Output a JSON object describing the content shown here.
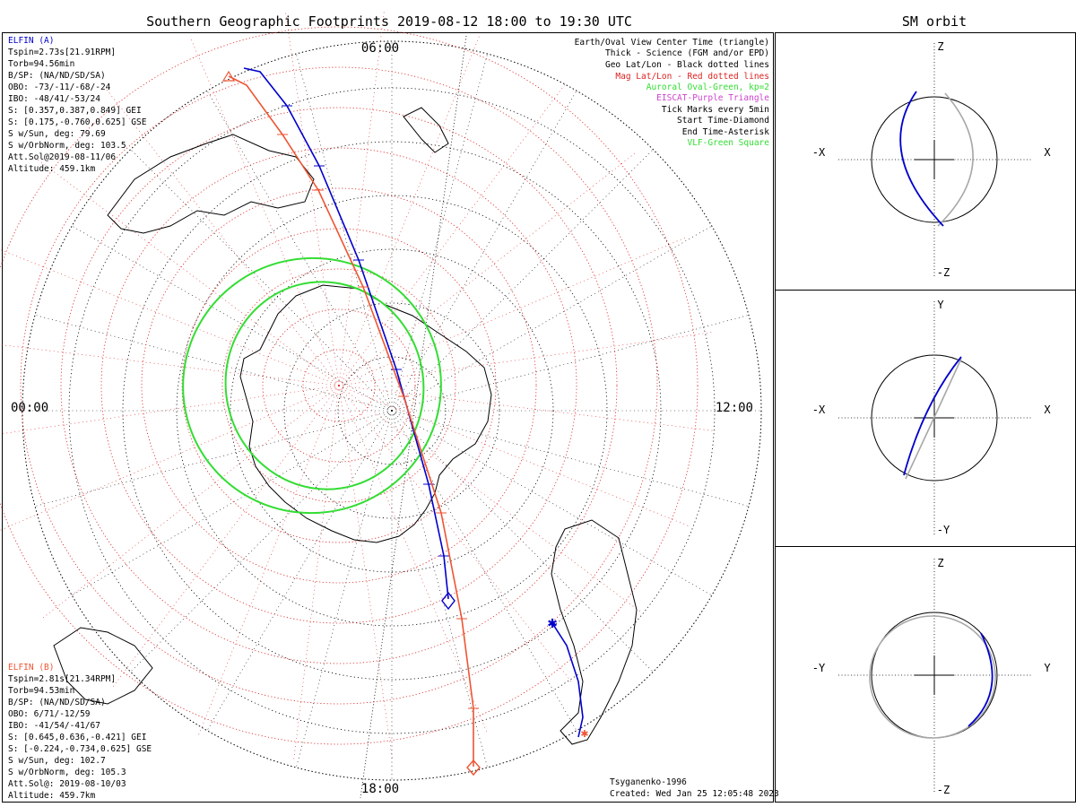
{
  "title": "Southern Geographic Footprints 2019-08-12 18:00 to 19:30 UTC",
  "side_title": "SM orbit",
  "hours": {
    "top": "06:00",
    "left": "00:00",
    "right": "12:00",
    "bottom": "18:00"
  },
  "colors": {
    "elfin_a": "#0000cc",
    "elfin_b": "#ee5533",
    "oval": "#33dd33",
    "mag_grid": "#dd2222",
    "geo_grid": "#000000",
    "sm_gray": "#a8a8a8",
    "eiscat": "#cc44cc"
  },
  "elfin_a": {
    "lines": [
      "ELFIN (A)",
      "Tspin=2.73s[21.91RPM]",
      "Torb=94.56min",
      "B/SP: (NA/ND/SD/SA)",
      "OBO: -73/-11/-68/-24",
      "IBO: -48/41/-53/24",
      "S: [0.357,0.387,0.849] GEI",
      "S: [0.175,-0.760,0.625] GSE",
      "S w/Sun, deg: 79.69",
      "S w/OrbNorm, deg: 103.5",
      "Att.Sol@2019-08-11/06",
      "Altitude: 459.1km"
    ]
  },
  "elfin_b": {
    "lines": [
      "ELFIN (B)",
      "Tspin=2.81s[21.34RPM]",
      "Torb=94.53min",
      "B/SP: (NA/ND/SD/SA)",
      "OBO: 6/71/-12/59",
      "IBO: -41/54/-41/67",
      "S: [0.645,0.636,-0.421] GEI",
      "S: [-0.224,-0.734,0.625] GSE",
      "S w/Sun, deg: 102.7",
      "S w/OrbNorm, deg: 105.3",
      "Att.Sol@: 2019-08-10/03",
      "Altitude: 459.7km"
    ]
  },
  "legend": [
    {
      "text": "Earth/Oval View Center Time (triangle)",
      "color": "#000000"
    },
    {
      "text": "Thick - Science (FGM and/or EPD)",
      "color": "#000000"
    },
    {
      "text": "Geo Lat/Lon - Black dotted lines",
      "color": "#000000"
    },
    {
      "text": "Mag Lat/Lon - Red dotted lines",
      "color": "#dd2222"
    },
    {
      "text": "Auroral Oval-Green, kp=2",
      "color": "#33dd33"
    },
    {
      "text": "EISCAT-Purple Triangle",
      "color": "#cc44cc"
    },
    {
      "text": "Tick Marks every 5min",
      "color": "#000000"
    },
    {
      "text": "Start Time-Diamond",
      "color": "#000000"
    },
    {
      "text": "End Time-Asterisk",
      "color": "#000000"
    },
    {
      "text": "VLF-Green Square",
      "color": "#33dd33"
    }
  ],
  "footer": {
    "model": "Tsyganenko-1996",
    "created": "Created: Wed Jan 25 12:05:48 2023"
  },
  "sm_panels": [
    {
      "top": "Z",
      "bottom": "-Z",
      "left": "-X",
      "right": "X"
    },
    {
      "top": "Y",
      "bottom": "-Y",
      "left": "-X",
      "right": "X"
    },
    {
      "top": "Z",
      "bottom": "-Z",
      "left": "-Y",
      "right": "Y"
    }
  ]
}
